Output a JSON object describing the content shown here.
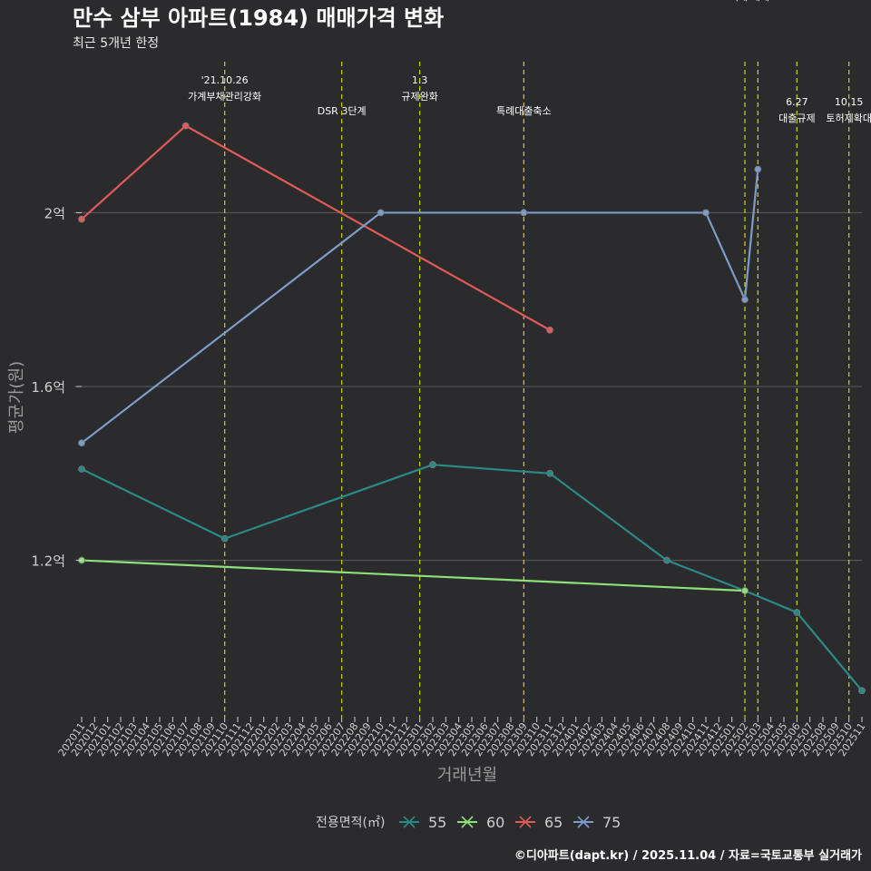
{
  "title": "만수 삼부 아파트(1984) 매매가격 변화",
  "subtitle": "최근 5개년 한정",
  "caption": "©디아파트(dapt.kr) / 2025.11.04 / 자료=국토교통부 실거래가",
  "colors": {
    "background": "#2b2a2c",
    "grid": "#5c5c5c",
    "event_line": "#d4d400",
    "axis_text": "#cfcfcf",
    "axis_title": "#9a9a9a"
  },
  "chart_data": {
    "type": "line",
    "xlabel": "거래년월",
    "ylabel": "평균가(원)",
    "x_categories": [
      "202011",
      "202012",
      "202101",
      "202102",
      "202103",
      "202104",
      "202105",
      "202106",
      "202107",
      "202108",
      "202109",
      "202110",
      "202111",
      "202112",
      "202201",
      "202202",
      "202203",
      "202204",
      "202205",
      "202206",
      "202207",
      "202208",
      "202209",
      "202210",
      "202211",
      "202212",
      "202301",
      "202302",
      "202303",
      "202304",
      "202305",
      "202306",
      "202307",
      "202308",
      "202309",
      "202310",
      "202311",
      "202312",
      "202401",
      "202402",
      "202403",
      "202404",
      "202405",
      "202406",
      "202407",
      "202408",
      "202409",
      "202410",
      "202411",
      "202412",
      "202501",
      "202502",
      "202503",
      "202504",
      "202505",
      "202506",
      "202507",
      "202508",
      "202509",
      "202510",
      "202511"
    ],
    "y_range": [
      0.84,
      2.36
    ],
    "y_ticks": [
      {
        "value": 1.2,
        "label": "1.2억"
      },
      {
        "value": 1.6,
        "label": "1.6억"
      },
      {
        "value": 2.0,
        "label": "2억"
      }
    ],
    "legend": {
      "title": "전용면적(㎡)",
      "position": "bottom",
      "items": [
        {
          "label": "55",
          "color": "#2a8a88"
        },
        {
          "label": "60",
          "color": "#8ee07a"
        },
        {
          "label": "65",
          "color": "#e05a5a"
        },
        {
          "label": "75",
          "color": "#7c9cc8"
        }
      ]
    },
    "series": [
      {
        "name": "55",
        "color": "#2a8a88",
        "points": [
          [
            "202011",
            1.41
          ],
          [
            "202110",
            1.25
          ],
          [
            "202302",
            1.42
          ],
          [
            "202311",
            1.4
          ],
          [
            "202408",
            1.2
          ],
          [
            "202502",
            1.13
          ],
          [
            "202506",
            1.08
          ],
          [
            "202511",
            0.9
          ]
        ]
      },
      {
        "name": "60",
        "color": "#8ee07a",
        "points": [
          [
            "202011",
            1.2
          ],
          [
            "202502",
            1.13
          ]
        ]
      },
      {
        "name": "65",
        "color": "#e05a5a",
        "points": [
          [
            "202011",
            1.985
          ],
          [
            "202107",
            2.2
          ],
          [
            "202311",
            1.73
          ]
        ]
      },
      {
        "name": "75",
        "color": "#7c9cc8",
        "points": [
          [
            "202011",
            1.47
          ],
          [
            "202210",
            2.0
          ],
          [
            "202309",
            2.0
          ],
          [
            "202411",
            2.0
          ],
          [
            "202502",
            1.8
          ],
          [
            "202503",
            2.1
          ]
        ]
      }
    ],
    "events": [
      {
        "x": "202110",
        "line1": "'21.10.26",
        "line2": "가계부채관리강화"
      },
      {
        "x": "202207",
        "line1": "",
        "line2": "DSR 3단계"
      },
      {
        "x": "202301",
        "line1": "1.3",
        "line2": "규제완화"
      },
      {
        "x": "202309",
        "line1": "",
        "line2": "특례대출축소"
      },
      {
        "x": "202502",
        "line1": "토허제 해제",
        "line2": ""
      },
      {
        "x": "202503",
        "line1": "",
        "line2": ""
      },
      {
        "x": "202506",
        "line1": "6.27",
        "line2": "대출규제"
      },
      {
        "x": "202510",
        "line1": "10.15",
        "line2": "토허제확대"
      }
    ]
  }
}
